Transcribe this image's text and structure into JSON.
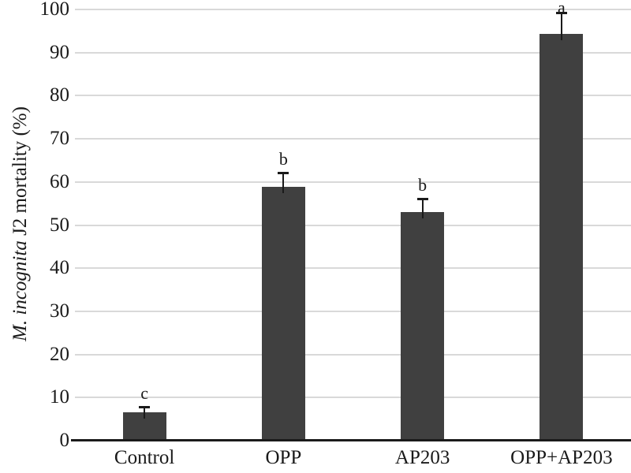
{
  "chart_data": {
    "type": "bar",
    "title": "",
    "ylabel": "M. incognita J2 mortality (%)",
    "ylabel_italic_part": "M. incognita",
    "ylabel_regular_part": " J2 mortality (%)",
    "xlabel": "",
    "categories": [
      "Control",
      "OPP",
      "AP203",
      "OPP+AP203"
    ],
    "values": [
      6.5,
      58.8,
      53.0,
      94.3
    ],
    "errors_upper": [
      1.3,
      3.4,
      3.1,
      4.9
    ],
    "significance_letters": [
      "c",
      "b",
      "b",
      "a"
    ],
    "ylim": [
      0,
      100
    ],
    "ytick_step": 10,
    "yticks": [
      0,
      10,
      20,
      30,
      40,
      50,
      60,
      70,
      80,
      90,
      100
    ],
    "grid": true,
    "legend_position": "none",
    "colors": {
      "bar": "#404040",
      "grid": "#d9d9d9",
      "axis": "#1a1a1a",
      "text": "#1a1a1a",
      "background": "#ffffff"
    }
  }
}
